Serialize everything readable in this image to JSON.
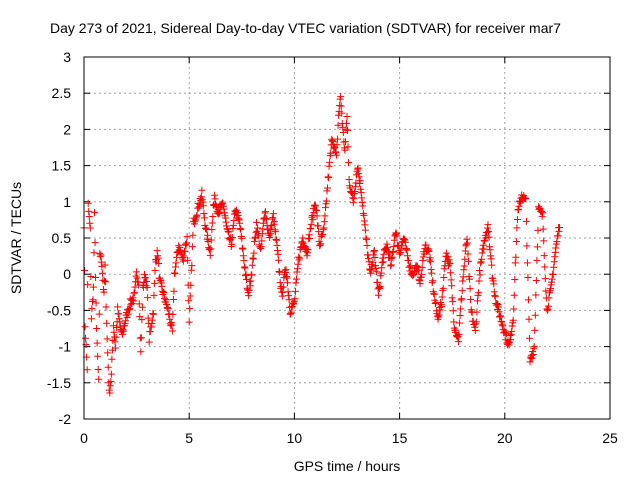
{
  "chart_data": {
    "type": "scatter",
    "title": "Day 273 of 2021, Sidereal Day-to-day VTEC variation (SDTVAR) for receiver mar7",
    "xlabel": "GPS time / hours",
    "ylabel": "SDTVAR / TECUs",
    "xlim": [
      0,
      25
    ],
    "ylim": [
      -2,
      3
    ],
    "xticks": [
      "0",
      "5",
      "10",
      "15",
      "20",
      "25"
    ],
    "yticks": [
      "-2",
      "-1.5",
      "-1",
      "-0.5",
      "0",
      "0.5",
      "1",
      "1.5",
      "2",
      "2.5",
      "3"
    ],
    "grid": true,
    "marker": "+",
    "color": "#ff0000",
    "series": [
      {
        "name": "SDTVAR",
        "trace": [
          [
            0.0,
            0.7
          ],
          [
            0.05,
            -0.7
          ],
          [
            0.15,
            -1.3
          ],
          [
            0.2,
            0.95
          ],
          [
            0.3,
            0.6
          ],
          [
            0.35,
            -0.6
          ],
          [
            0.45,
            -0.2
          ],
          [
            0.5,
            0.8
          ],
          [
            0.6,
            -0.8
          ],
          [
            0.7,
            -1.5
          ],
          [
            0.75,
            0.3
          ],
          [
            0.85,
            0.15
          ],
          [
            0.95,
            -0.3
          ],
          [
            1.0,
            0.1
          ],
          [
            1.1,
            -0.9
          ],
          [
            1.2,
            -1.65
          ],
          [
            1.3,
            -1.4
          ],
          [
            1.4,
            -0.7
          ],
          [
            1.5,
            -1.0
          ],
          [
            1.6,
            -0.5
          ],
          [
            1.8,
            -0.85
          ],
          [
            2.0,
            -0.6
          ],
          [
            2.2,
            -0.4
          ],
          [
            2.4,
            -0.3
          ],
          [
            2.5,
            0.0
          ],
          [
            2.6,
            -0.1
          ],
          [
            2.7,
            -1.1
          ],
          [
            2.8,
            -0.2
          ],
          [
            2.9,
            0.0
          ],
          [
            3.0,
            -0.2
          ],
          [
            3.1,
            -0.9
          ],
          [
            3.3,
            -0.5
          ],
          [
            3.4,
            0.2
          ],
          [
            3.5,
            0.3
          ],
          [
            3.6,
            -0.1
          ],
          [
            3.8,
            -0.3
          ],
          [
            4.0,
            -0.5
          ],
          [
            4.2,
            -0.8
          ],
          [
            4.3,
            0.0
          ],
          [
            4.5,
            0.4
          ],
          [
            4.7,
            0.2
          ],
          [
            4.9,
            0.5
          ],
          [
            5.0,
            -0.7
          ],
          [
            5.2,
            0.7
          ],
          [
            5.4,
            0.9
          ],
          [
            5.6,
            1.1
          ],
          [
            5.8,
            0.6
          ],
          [
            6.0,
            0.3
          ],
          [
            6.2,
            1.1
          ],
          [
            6.4,
            0.8
          ],
          [
            6.6,
            1.0
          ],
          [
            6.8,
            0.6
          ],
          [
            7.0,
            0.4
          ],
          [
            7.2,
            0.9
          ],
          [
            7.4,
            0.7
          ],
          [
            7.6,
            0.2
          ],
          [
            7.8,
            -0.3
          ],
          [
            8.0,
            0.1
          ],
          [
            8.2,
            0.7
          ],
          [
            8.4,
            0.3
          ],
          [
            8.6,
            0.9
          ],
          [
            8.8,
            0.5
          ],
          [
            9.0,
            0.8
          ],
          [
            9.2,
            0.3
          ],
          [
            9.4,
            -0.3
          ],
          [
            9.6,
            0.1
          ],
          [
            9.8,
            -0.5
          ],
          [
            10.0,
            -0.4
          ],
          [
            10.2,
            0.2
          ],
          [
            10.4,
            0.5
          ],
          [
            10.6,
            0.3
          ],
          [
            10.8,
            0.7
          ],
          [
            11.0,
            1.0
          ],
          [
            11.2,
            0.4
          ],
          [
            11.4,
            0.6
          ],
          [
            11.6,
            1.3
          ],
          [
            11.8,
            1.9
          ],
          [
            12.0,
            1.6
          ],
          [
            12.1,
            2.2
          ],
          [
            12.2,
            2.45
          ],
          [
            12.3,
            2.0
          ],
          [
            12.4,
            1.7
          ],
          [
            12.5,
            2.2
          ],
          [
            12.6,
            1.3
          ],
          [
            12.8,
            1.0
          ],
          [
            13.0,
            1.5
          ],
          [
            13.2,
            1.1
          ],
          [
            13.4,
            0.5
          ],
          [
            13.6,
            0.0
          ],
          [
            13.8,
            0.3
          ],
          [
            14.0,
            -0.3
          ],
          [
            14.2,
            0.2
          ],
          [
            14.4,
            0.4
          ],
          [
            14.6,
            0.1
          ],
          [
            14.8,
            0.6
          ],
          [
            15.0,
            0.3
          ],
          [
            15.2,
            0.5
          ],
          [
            15.4,
            0.2
          ],
          [
            15.6,
            0.0
          ],
          [
            15.8,
            0.1
          ],
          [
            16.0,
            -0.1
          ],
          [
            16.2,
            0.4
          ],
          [
            16.4,
            0.3
          ],
          [
            16.6,
            -0.2
          ],
          [
            16.8,
            -0.6
          ],
          [
            17.0,
            -0.4
          ],
          [
            17.2,
            0.3
          ],
          [
            17.4,
            0.1
          ],
          [
            17.6,
            -0.7
          ],
          [
            17.8,
            -0.9
          ],
          [
            18.0,
            -0.1
          ],
          [
            18.2,
            0.5
          ],
          [
            18.4,
            -0.5
          ],
          [
            18.6,
            -0.8
          ],
          [
            18.8,
            0.0
          ],
          [
            19.0,
            0.4
          ],
          [
            19.2,
            0.7
          ],
          [
            19.4,
            0.0
          ],
          [
            19.6,
            -0.4
          ],
          [
            19.8,
            -0.6
          ],
          [
            20.0,
            -0.8
          ],
          [
            20.2,
            -1.0
          ],
          [
            20.4,
            -0.6
          ],
          [
            20.6,
            0.8
          ],
          [
            20.8,
            1.1
          ],
          [
            21.0,
            1.0
          ],
          [
            21.2,
            -1.2
          ],
          [
            21.4,
            -1.0
          ],
          [
            21.6,
            0.9
          ],
          [
            21.8,
            0.8
          ],
          [
            22.0,
            -0.5
          ],
          [
            22.2,
            -0.2
          ],
          [
            22.4,
            0.3
          ],
          [
            22.6,
            0.7
          ]
        ]
      }
    ]
  }
}
